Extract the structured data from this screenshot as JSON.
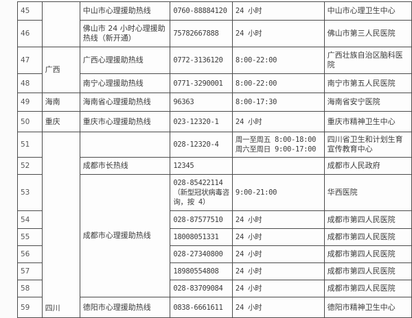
{
  "rows": [
    {
      "no": "45",
      "province": "",
      "line": "中山市心理援助热线",
      "phone": "0760-88884120",
      "hours": "24 小时",
      "org": "中山市心理卫生中心"
    },
    {
      "no": "46",
      "line": "佛山市 24 小时心理援助热线（新开通）",
      "phone": "75782667888",
      "hours": "24 小时",
      "org": "佛山市第三人民医院"
    },
    {
      "no": "47",
      "province": "广西",
      "line": "广西心理援助热线",
      "phone": "0772-3136120",
      "hours": "8:00-22:00",
      "org": "广西壮族自治区脑科医院"
    },
    {
      "no": "48",
      "line": "南宁心理援助热线",
      "phone": "0771-3290001",
      "hours": "8:00-22:00",
      "org": "南宁市第五人民医院"
    },
    {
      "no": "49",
      "province": "海南",
      "line": "海南省心理援助热线",
      "phone": "96363",
      "hours": "8:00-17:30",
      "org": "海南省安宁医院"
    },
    {
      "no": "50",
      "province": "重庆",
      "line": "重庆市心理援助热线",
      "phone": "023-12320-1",
      "hours": "24 小时",
      "org": "重庆市精神卫生中心"
    },
    {
      "no": "51",
      "province": "四川",
      "line": "",
      "phone": "028-12320-4",
      "hours": "周一至周五 8:00-18:00 周六至周日 9:00-17:00",
      "org": "四川省卫生和计划生育宣传教育中心"
    },
    {
      "no": "52",
      "line": "成都市长热线",
      "phone": "12345",
      "hours": "",
      "org": "成都市人民政府"
    },
    {
      "no": "53",
      "line": "成都市心理援助热线",
      "phone": "028-85422114（新型冠状病毒咨询，按 4）",
      "hours": "9:00-21:00",
      "org": "华西医院"
    },
    {
      "no": "54",
      "phone": "028-87577510",
      "hours": "24 小时",
      "org": "成都市第四人民医院"
    },
    {
      "no": "55",
      "phone": "18008051331",
      "hours": "24 小时",
      "org": "成都市第四人民医院"
    },
    {
      "no": "56",
      "phone": "028-27340800",
      "hours": "24 小时",
      "org": "成都市第四人民医院"
    },
    {
      "no": "57",
      "phone": "18980554808",
      "hours": "24 小时",
      "org": "成都市第四人民医院"
    },
    {
      "no": "58",
      "phone": "028-83709084",
      "hours": "24 小时",
      "org": "成都市第四人民医院"
    },
    {
      "no": "59",
      "line": "德阳市心理援助热线",
      "phone": "0838-6661611",
      "hours": "24 小时",
      "org": "德阳市精神卫生中心"
    }
  ]
}
